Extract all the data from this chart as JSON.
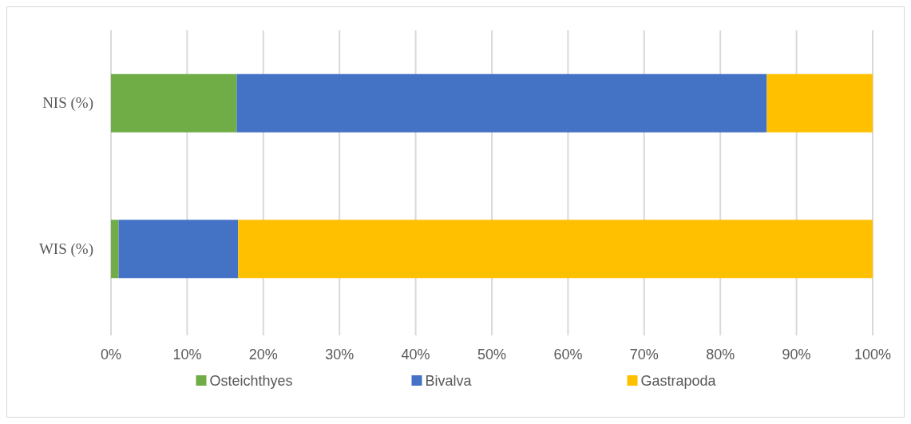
{
  "chart_data": {
    "type": "bar",
    "orientation": "horizontal",
    "stacked": true,
    "categories": [
      "NIS (%)",
      "WIS (%)"
    ],
    "series": [
      {
        "name": "Osteichthyes",
        "color": "#70ad47",
        "values": [
          16.5,
          1.0
        ]
      },
      {
        "name": "Bivalva",
        "color": "#4472c4",
        "values": [
          69.6,
          15.7
        ]
      },
      {
        "name": "Gastrapoda",
        "color": "#ffc000",
        "values": [
          13.9,
          83.3
        ]
      }
    ],
    "xlim": [
      0,
      100
    ],
    "xticks": [
      {
        "value": 0,
        "label": "0%"
      },
      {
        "value": 10,
        "label": "10%"
      },
      {
        "value": 20,
        "label": "20%"
      },
      {
        "value": 30,
        "label": "30%"
      },
      {
        "value": 40,
        "label": "40%"
      },
      {
        "value": 50,
        "label": "50%"
      },
      {
        "value": 60,
        "label": "60%"
      },
      {
        "value": 70,
        "label": "70%"
      },
      {
        "value": 80,
        "label": "80%"
      },
      {
        "value": 90,
        "label": "90%"
      },
      {
        "value": 100,
        "label": "100%"
      }
    ],
    "grid": "x",
    "legend": "bottom"
  }
}
